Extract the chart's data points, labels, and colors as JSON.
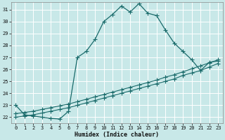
{
  "xlabel": "Humidex (Indice chaleur)",
  "bg_color": "#c8e8e8",
  "grid_color": "#b0d0d0",
  "line_color": "#1a6b6b",
  "xlim": [
    -0.5,
    23.5
  ],
  "ylim": [
    21.5,
    31.6
  ],
  "yticks": [
    22,
    23,
    24,
    25,
    26,
    27,
    28,
    29,
    30,
    31
  ],
  "xticks": [
    0,
    1,
    2,
    3,
    4,
    5,
    6,
    7,
    8,
    9,
    10,
    11,
    12,
    13,
    14,
    15,
    16,
    17,
    18,
    19,
    20,
    21,
    22,
    23
  ],
  "curve1_x": [
    0,
    1,
    2,
    3,
    4,
    5,
    6,
    7,
    8,
    9,
    10,
    11,
    12,
    13,
    14,
    15,
    16,
    17,
    18,
    19,
    20,
    21,
    22,
    23
  ],
  "curve1_y": [
    23.0,
    22.2,
    22.1,
    22.0,
    21.9,
    21.85,
    22.5,
    27.0,
    27.5,
    28.5,
    30.0,
    30.6,
    31.3,
    30.8,
    31.5,
    30.7,
    30.5,
    29.3,
    28.2,
    27.5,
    26.8,
    25.9,
    26.6,
    26.7
  ],
  "line2_x": [
    0,
    1,
    2,
    3,
    4,
    5,
    6,
    7,
    8,
    9,
    10,
    11,
    12,
    13,
    14,
    15,
    16,
    17,
    18,
    19,
    20,
    21,
    22,
    23
  ],
  "line2_y": [
    22.0,
    22.1,
    22.2,
    22.35,
    22.5,
    22.65,
    22.8,
    23.0,
    23.2,
    23.4,
    23.6,
    23.8,
    24.0,
    24.2,
    24.4,
    24.6,
    24.8,
    25.0,
    25.2,
    25.5,
    25.7,
    25.9,
    26.2,
    26.5
  ],
  "line3_x": [
    0,
    1,
    2,
    3,
    4,
    5,
    6,
    7,
    8,
    9,
    10,
    11,
    12,
    13,
    14,
    15,
    16,
    17,
    18,
    19,
    20,
    21,
    22,
    23
  ],
  "line3_y": [
    22.3,
    22.4,
    22.5,
    22.65,
    22.8,
    22.95,
    23.1,
    23.3,
    23.5,
    23.7,
    23.9,
    24.1,
    24.3,
    24.5,
    24.7,
    24.9,
    25.1,
    25.35,
    25.55,
    25.8,
    26.05,
    26.3,
    26.55,
    26.8
  ]
}
